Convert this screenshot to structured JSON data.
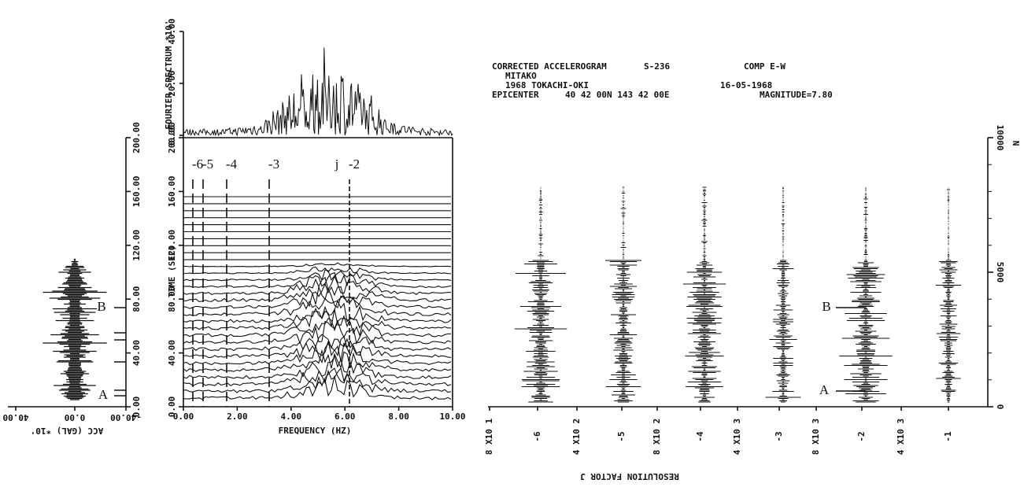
{
  "header": {
    "line1": [
      "CORRECTED ACCELEROGRAM",
      "S-236",
      "COMP E-W"
    ],
    "station": "MITAKO",
    "event": "1968 TOKACHI-OKI",
    "date": "16-05-1968",
    "epicenter": "EPICENTER",
    "coords": "40 42 00N 143 42 00E",
    "magnitude": "MAGNITUDE=7.80"
  },
  "acc_panel": {
    "ticks": [
      "40.00",
      "0.00",
      "-40.00"
    ],
    "label": "ACC (GAL) *10'",
    "markers": [
      "A",
      "B"
    ]
  },
  "time_axis": {
    "ticks": [
      "0.00",
      "40.00",
      "80.00",
      "120.00",
      "160.00",
      "200.00"
    ],
    "label": "TIME (SEC)"
  },
  "spectrum": {
    "ticks": [
      "0.00",
      "20.00",
      "40.00"
    ],
    "label": "FOURIER SPECTRUM *10'"
  },
  "freq_axis": {
    "ticks": [
      "0.00",
      "2.00",
      "4.00",
      "6.00",
      "8.00",
      "10.00"
    ],
    "label": "FREQUENCY (HZ)",
    "markers": [
      "-6",
      "-5",
      "-4",
      "-3",
      "j",
      "-2"
    ]
  },
  "resolution_panel": {
    "n_ticks": [
      "0",
      "5000",
      "10000"
    ],
    "n_label": "N",
    "bottom": [
      "8 X10 1",
      "-6",
      "4 X10 2",
      "-5",
      "8 X10 2",
      "-4",
      "4 X10 3",
      "-3",
      "8 X10 3",
      "-2",
      "4 X10 3",
      "-1"
    ],
    "label": "RESOLUTION FACTOR J",
    "markers": [
      "A",
      "B"
    ]
  }
}
